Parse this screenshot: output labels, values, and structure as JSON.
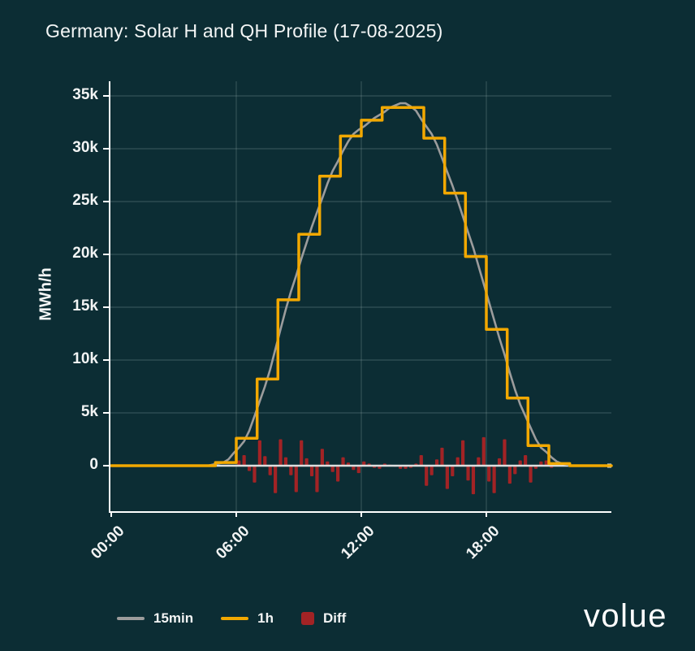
{
  "logo": {
    "text": "volue"
  },
  "chart_data": {
    "type": "mixed",
    "title": "Germany: Solar H and QH Profile (17-08-2025)",
    "xlabel": "",
    "ylabel": "MWh/h",
    "unit": "MWh/h",
    "ylim": [
      -4400,
      36400
    ],
    "x_hours_range": [
      0,
      24
    ],
    "grid": true,
    "legend_position": "bottom-left",
    "colors": {
      "background": "#0C2D34",
      "axis": "#FFFFFF",
      "gridline": "rgba(190,214,216,0.22)",
      "zero_line": "#DCDEDE",
      "text": "#F2F4F4"
    },
    "y_ticks": [
      {
        "label": "0",
        "value": 0
      },
      {
        "label": "5k",
        "value": 5000
      },
      {
        "label": "10k",
        "value": 10000
      },
      {
        "label": "15k",
        "value": 15000
      },
      {
        "label": "20k",
        "value": 20000
      },
      {
        "label": "25k",
        "value": 25000
      },
      {
        "label": "30k",
        "value": 30000
      },
      {
        "label": "35k",
        "value": 35000
      }
    ],
    "x_ticks": [
      {
        "label": "00:00",
        "hour": 0
      },
      {
        "label": "06:00",
        "hour": 6
      },
      {
        "label": "12:00",
        "hour": 12
      },
      {
        "label": "18:00",
        "hour": 18
      }
    ],
    "legend_items": [
      {
        "label": "15min",
        "type": "line",
        "color": "#9C9C9C"
      },
      {
        "label": "1h",
        "type": "line",
        "color": "#F2A800"
      },
      {
        "label": "Diff",
        "type": "square",
        "color": "#A22325"
      }
    ],
    "series": [
      {
        "name": "15min",
        "type": "line",
        "color": "#9C9C9C",
        "interval_minutes": 15,
        "values": [
          0,
          0,
          0,
          0,
          0,
          0,
          0,
          0,
          0,
          0,
          0,
          0,
          0,
          0,
          0,
          0,
          0,
          0,
          0,
          100,
          200,
          300,
          600,
          1200,
          1700,
          2300,
          3300,
          4700,
          6100,
          7500,
          9100,
          11000,
          12900,
          14800,
          16500,
          18000,
          19600,
          21100,
          22600,
          24000,
          25300,
          26700,
          27900,
          28800,
          29800,
          30700,
          31400,
          31800,
          32100,
          32500,
          32900,
          33200,
          33500,
          33900,
          34100,
          34300,
          34300,
          34000,
          33600,
          32800,
          32100,
          31400,
          30400,
          29100,
          27800,
          26500,
          25100,
          23600,
          22100,
          20600,
          18900,
          17200,
          15500,
          13800,
          12100,
          10500,
          8800,
          7200,
          5800,
          4700,
          3600,
          2500,
          1700,
          1300,
          800,
          400,
          200,
          100,
          0,
          0,
          0,
          0,
          0,
          0,
          0,
          0
        ]
      },
      {
        "name": "1h",
        "type": "step",
        "color": "#F2A800",
        "interval_minutes": 60,
        "values": [
          0,
          0,
          0,
          0,
          0,
          300,
          2600,
          8200,
          15700,
          21900,
          27400,
          31200,
          32700,
          33900,
          33900,
          31000,
          25800,
          19800,
          12900,
          6400,
          1900,
          200,
          0,
          0
        ]
      },
      {
        "name": "Diff",
        "type": "bar",
        "color": "#A22325",
        "interval_minutes": 15,
        "values": [
          0,
          0,
          0,
          0,
          0,
          0,
          0,
          0,
          0,
          0,
          0,
          0,
          0,
          0,
          0,
          0,
          0,
          0,
          0,
          0,
          0,
          0,
          100,
          -100,
          500,
          1000,
          -500,
          -1600,
          2400,
          900,
          -900,
          -2600,
          2500,
          800,
          -900,
          -2500,
          2400,
          700,
          -1000,
          -2500,
          1600,
          400,
          -600,
          -1500,
          800,
          300,
          -400,
          -700,
          400,
          200,
          -200,
          -300,
          200,
          100,
          -100,
          -300,
          -300,
          -200,
          200,
          1000,
          -1900,
          -900,
          600,
          1700,
          -2200,
          -1000,
          800,
          2400,
          -1400,
          -2700,
          800,
          2700,
          -1500,
          -2600,
          700,
          2500,
          -1700,
          -800,
          500,
          1000,
          -1600,
          -300,
          400,
          500,
          -200,
          100,
          0,
          0,
          0,
          0,
          0,
          0,
          0,
          0,
          0,
          0
        ]
      }
    ]
  }
}
